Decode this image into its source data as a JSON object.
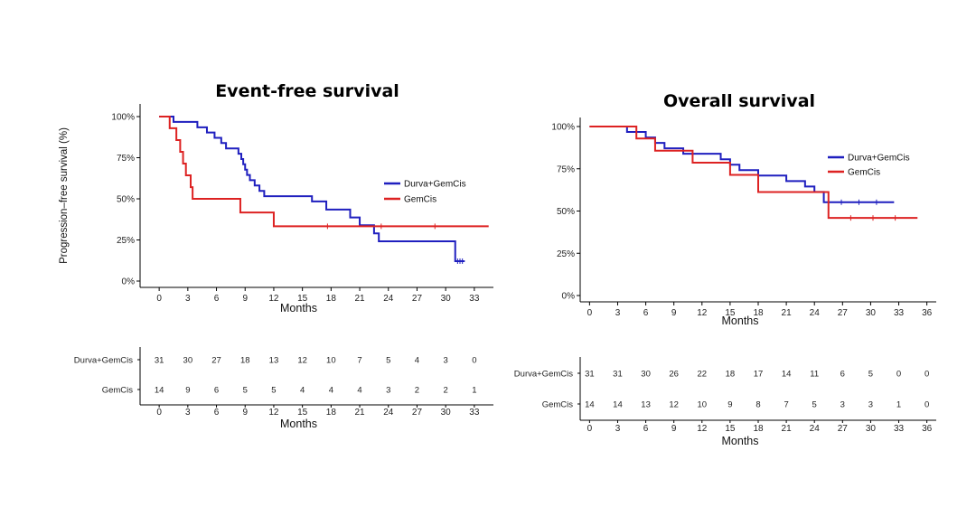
{
  "chart_data": [
    {
      "type": "line",
      "title": "Event-free survival",
      "xlabel": "Months",
      "ylabel": "Progression–free survival (%)",
      "xlim": [
        -2,
        35
      ],
      "ylim": [
        0,
        1
      ],
      "x_ticks": [
        0,
        3,
        6,
        9,
        12,
        15,
        18,
        21,
        24,
        27,
        30,
        33
      ],
      "y_ticks": [
        0,
        0.25,
        0.5,
        0.75,
        1
      ],
      "y_tick_labels": [
        "0%",
        "25%",
        "50%",
        "75%",
        "100%"
      ],
      "legend_position": "right",
      "series": [
        {
          "name": "Durva+GemCis",
          "color": "#1f1fbf",
          "steps": [
            [
              0,
              1
            ],
            [
              1.5,
              0.968
            ],
            [
              4,
              0.935
            ],
            [
              5,
              0.903
            ],
            [
              5.8,
              0.871
            ],
            [
              6.5,
              0.839
            ],
            [
              7,
              0.806
            ],
            [
              8.3,
              0.774
            ],
            [
              8.6,
              0.742
            ],
            [
              8.8,
              0.71
            ],
            [
              9,
              0.677
            ],
            [
              9.2,
              0.645
            ],
            [
              9.5,
              0.613
            ],
            [
              10,
              0.581
            ],
            [
              10.5,
              0.548
            ],
            [
              11,
              0.516
            ],
            [
              16,
              0.484
            ],
            [
              17.5,
              0.435
            ],
            [
              20,
              0.387
            ],
            [
              21,
              0.339
            ],
            [
              22.5,
              0.29
            ],
            [
              23,
              0.242
            ],
            [
              31,
              0.121
            ],
            [
              32,
              0.121
            ]
          ]
        },
        {
          "name": "GemCis",
          "color": "#dd2222",
          "steps": [
            [
              0,
              1
            ],
            [
              1.1,
              0.929
            ],
            [
              1.8,
              0.857
            ],
            [
              2.2,
              0.786
            ],
            [
              2.5,
              0.714
            ],
            [
              2.8,
              0.643
            ],
            [
              3.3,
              0.571
            ],
            [
              3.5,
              0.5
            ],
            [
              8.5,
              0.417
            ],
            [
              12,
              0.333
            ],
            [
              34.5,
              0.333
            ]
          ]
        }
      ],
      "risk_table": {
        "xlabel": "Months",
        "x_ticks": [
          0,
          3,
          6,
          9,
          12,
          15,
          18,
          21,
          24,
          27,
          30,
          33
        ],
        "rows": [
          {
            "label": "Durva+GemCis",
            "values": [
              "31",
              "30",
              "27",
              "18",
              "13",
              "12",
              "10",
              "7",
              "5",
              "4",
              "3",
              "0"
            ]
          },
          {
            "label": "GemCis",
            "values": [
              "14",
              "9",
              "6",
              "5",
              "5",
              "4",
              "4",
              "4",
              "3",
              "2",
              "2",
              "1"
            ]
          }
        ]
      }
    },
    {
      "type": "line",
      "title": "Overall survival",
      "xlabel": "Months",
      "ylabel": "",
      "xlim": [
        -1,
        37
      ],
      "ylim": [
        0,
        1
      ],
      "x_ticks": [
        0,
        3,
        6,
        9,
        12,
        15,
        18,
        21,
        24,
        27,
        30,
        33,
        36
      ],
      "y_ticks": [
        0,
        0.25,
        0.5,
        0.75,
        1
      ],
      "y_tick_labels": [
        "0%",
        "25%",
        "50%",
        "75%",
        "100%"
      ],
      "legend_position": "top-right",
      "series": [
        {
          "name": "Durva+GemCis",
          "color": "#1f1fbf",
          "steps": [
            [
              0,
              1
            ],
            [
              4,
              0.968
            ],
            [
              6,
              0.935
            ],
            [
              7,
              0.903
            ],
            [
              8,
              0.871
            ],
            [
              10,
              0.839
            ],
            [
              14,
              0.806
            ],
            [
              15,
              0.774
            ],
            [
              16,
              0.742
            ],
            [
              18,
              0.71
            ],
            [
              21,
              0.677
            ],
            [
              23,
              0.645
            ],
            [
              24,
              0.613
            ],
            [
              25,
              0.552
            ],
            [
              32.5,
              0.552
            ]
          ]
        },
        {
          "name": "GemCis",
          "color": "#dd2222",
          "steps": [
            [
              0,
              1
            ],
            [
              5,
              0.929
            ],
            [
              7,
              0.857
            ],
            [
              11,
              0.786
            ],
            [
              15,
              0.714
            ],
            [
              18,
              0.612
            ],
            [
              25.5,
              0.459
            ],
            [
              35,
              0.459
            ]
          ]
        }
      ],
      "risk_table": {
        "xlabel": "Months",
        "x_ticks": [
          0,
          3,
          6,
          9,
          12,
          15,
          18,
          21,
          24,
          27,
          30,
          33,
          36
        ],
        "rows": [
          {
            "label": "Durva+GemCis",
            "values": [
              "31",
              "31",
              "30",
              "26",
              "22",
              "18",
              "17",
              "14",
              "11",
              "6",
              "5",
              "0",
              "0"
            ]
          },
          {
            "label": "GemCis",
            "values": [
              "14",
              "14",
              "13",
              "12",
              "10",
              "9",
              "8",
              "7",
              "5",
              "3",
              "3",
              "1",
              "0"
            ]
          }
        ]
      }
    }
  ]
}
